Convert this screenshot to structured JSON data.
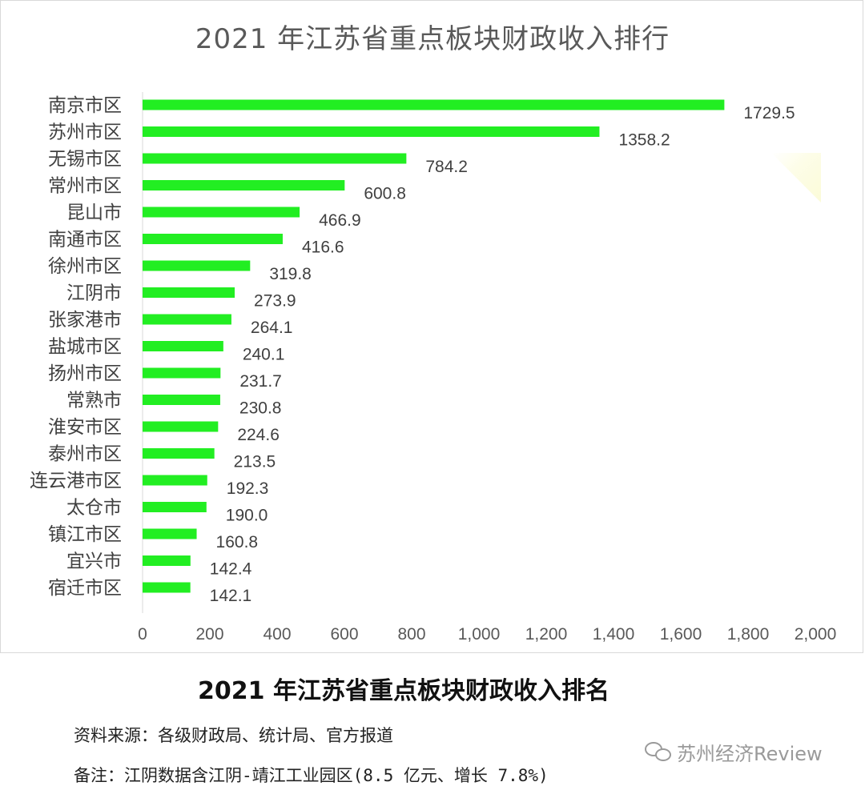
{
  "chart_data": {
    "type": "bar",
    "orientation": "horizontal",
    "title": "2021 年江苏省重点板块财政收入排行",
    "categories": [
      "南京市区",
      "苏州市区",
      "无锡市区",
      "常州市区",
      "昆山市",
      "南通市区",
      "徐州市区",
      "江阴市",
      "张家港市",
      "盐城市区",
      "扬州市区",
      "常熟市",
      "淮安市区",
      "泰州市区",
      "连云港市区",
      "太仓市",
      "镇江市区",
      "宜兴市",
      "宿迁市区"
    ],
    "values": [
      1729.5,
      1358.2,
      784.2,
      600.8,
      466.9,
      416.6,
      319.8,
      273.9,
      264.1,
      240.1,
      231.7,
      230.8,
      224.6,
      213.5,
      192.3,
      190.0,
      160.8,
      142.4,
      142.1
    ],
    "value_labels": [
      "1729.5",
      "1358.2",
      "784.2",
      "600.8",
      "466.9",
      "416.6",
      "319.8",
      "273.9",
      "264.1",
      "240.1",
      "231.7",
      "230.8",
      "224.6",
      "213.5",
      "192.3",
      "190.0",
      "160.8",
      "142.4",
      "142.1"
    ],
    "xlim": [
      0,
      2000
    ],
    "x_ticks": [
      0,
      200,
      400,
      600,
      800,
      1000,
      1200,
      1400,
      1600,
      1800,
      2000
    ],
    "x_tick_labels": [
      "0",
      "200",
      "400",
      "600",
      "800",
      "1,000",
      "1,200",
      "1,400",
      "1,600",
      "1,800",
      "2,000"
    ],
    "bar_color": "#22ee22",
    "grid": false,
    "legend": "none"
  },
  "caption": {
    "title": "2021 年江苏省重点板块财政收入排名",
    "source": "资料来源：各级财政局、统计局、官方报道",
    "remark": "备注：江阴数据含江阴-靖江工业园区(8.5 亿元、增长 7.8%)"
  },
  "watermark": {
    "text": "苏州经济Review",
    "icon": "wechat-icon"
  }
}
